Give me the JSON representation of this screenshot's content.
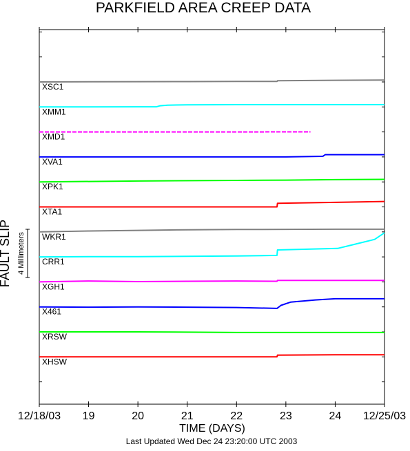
{
  "chart_data": {
    "type": "line",
    "title": "PARKFIELD AREA CREEP DATA",
    "xlabel": "TIME (DAYS)",
    "ylabel": "FAULT SLIP",
    "scale_bar_label": "4 Millimeters",
    "footer": "Last Updated Wed Dec 24 23:20:00 UTC 2003",
    "x_ticks": [
      {
        "day": 0,
        "label": "12/18/03"
      },
      {
        "day": 1,
        "label": "19"
      },
      {
        "day": 2,
        "label": "20"
      },
      {
        "day": 3,
        "label": "21"
      },
      {
        "day": 4,
        "label": "22"
      },
      {
        "day": 5,
        "label": "23"
      },
      {
        "day": 6,
        "label": "24"
      },
      {
        "day": 7,
        "label": "12/25/03"
      }
    ],
    "xlim": [
      0,
      7
    ],
    "series": [
      {
        "name": "XSC1",
        "color": "#808080",
        "points": [
          [
            0,
            0.0
          ],
          [
            1,
            0.05
          ],
          [
            2,
            0.1
          ],
          [
            3,
            0.12
          ],
          [
            4,
            0.15
          ],
          [
            4.82,
            0.17
          ],
          [
            4.83,
            0.4
          ],
          [
            6,
            0.55
          ],
          [
            7,
            0.65
          ]
        ]
      },
      {
        "name": "XMM1",
        "color": "#00ffff",
        "points": [
          [
            0,
            0.0
          ],
          [
            1,
            0.02
          ],
          [
            2,
            0.05
          ],
          [
            2.38,
            0.05
          ],
          [
            2.45,
            0.4
          ],
          [
            2.6,
            0.6
          ],
          [
            3,
            0.7
          ],
          [
            4,
            0.75
          ],
          [
            5,
            0.75
          ],
          [
            7,
            0.75
          ]
        ]
      },
      {
        "name": "XMD1",
        "color": "#ff00ff",
        "dashed": true,
        "points": [
          [
            0,
            0.0
          ],
          [
            2,
            0.0
          ],
          [
            4,
            0.0
          ],
          [
            5.5,
            0.02
          ]
        ]
      },
      {
        "name": "XVA1",
        "color": "#0000ff",
        "points": [
          [
            0,
            0.0
          ],
          [
            1,
            0.0
          ],
          [
            2,
            0.0
          ],
          [
            3,
            0.0
          ],
          [
            4,
            0.0
          ],
          [
            5,
            0.0
          ],
          [
            5.75,
            0.2
          ],
          [
            5.8,
            0.75
          ],
          [
            7,
            0.75
          ]
        ]
      },
      {
        "name": "XPK1",
        "color": "#00ff00",
        "points": [
          [
            0,
            0.0
          ],
          [
            2,
            0.3
          ],
          [
            4,
            0.5
          ],
          [
            5,
            0.6
          ],
          [
            6,
            0.75
          ],
          [
            7,
            0.85
          ]
        ]
      },
      {
        "name": "XTA1",
        "color": "#ff0000",
        "points": [
          [
            0,
            0.0
          ],
          [
            2,
            0.0
          ],
          [
            4,
            0.0
          ],
          [
            4.82,
            0.0
          ],
          [
            4.83,
            1.2
          ],
          [
            6,
            1.5
          ],
          [
            7,
            1.8
          ]
        ]
      },
      {
        "name": "WKR1",
        "color": "#808080",
        "points": [
          [
            0,
            0.0
          ],
          [
            1,
            0.3
          ],
          [
            2,
            0.5
          ],
          [
            3,
            0.7
          ],
          [
            4,
            0.8
          ],
          [
            5,
            0.85
          ],
          [
            6,
            0.9
          ],
          [
            6.7,
            0.9
          ],
          [
            7,
            0.9
          ]
        ]
      },
      {
        "name": "CRR1",
        "color": "#00ffff",
        "points": [
          [
            0,
            0.0
          ],
          [
            1,
            0.1
          ],
          [
            2,
            0.1
          ],
          [
            3,
            0.2
          ],
          [
            4,
            0.3
          ],
          [
            4.82,
            0.5
          ],
          [
            4.83,
            2.3
          ],
          [
            6.05,
            2.8
          ],
          [
            6.8,
            5.8
          ],
          [
            7,
            8.0
          ]
        ]
      },
      {
        "name": "XGH1",
        "color": "#ff00ff",
        "points": [
          [
            0,
            0.0
          ],
          [
            1,
            0.3
          ],
          [
            2,
            0.1
          ],
          [
            3,
            0.2
          ],
          [
            4,
            0.3
          ],
          [
            4.82,
            0.2
          ],
          [
            4.83,
            0.5
          ],
          [
            6,
            0.5
          ],
          [
            7,
            0.5
          ]
        ]
      },
      {
        "name": "X461",
        "color": "#0000ff",
        "points": [
          [
            0,
            0.0
          ],
          [
            1,
            -0.1
          ],
          [
            2,
            0.0
          ],
          [
            3,
            -0.1
          ],
          [
            4,
            -0.2
          ],
          [
            4.82,
            -0.5
          ],
          [
            4.9,
            0.5
          ],
          [
            5.1,
            1.6
          ],
          [
            5.6,
            2.3
          ],
          [
            6.0,
            2.7
          ],
          [
            7,
            2.7
          ]
        ]
      },
      {
        "name": "XRSW",
        "color": "#00ff00",
        "points": [
          [
            0,
            0.0
          ],
          [
            1,
            0.0
          ],
          [
            2,
            0.0
          ],
          [
            3,
            -0.1
          ],
          [
            4,
            -0.2
          ],
          [
            5,
            -0.2
          ],
          [
            6,
            -0.2
          ],
          [
            7,
            -0.2
          ]
        ]
      },
      {
        "name": "XHSW",
        "color": "#ff0000",
        "points": [
          [
            0,
            0.0
          ],
          [
            2,
            0.0
          ],
          [
            4,
            0.0
          ],
          [
            4.82,
            0.0
          ],
          [
            4.83,
            0.6
          ],
          [
            6,
            0.7
          ],
          [
            7,
            0.7
          ]
        ]
      }
    ]
  }
}
